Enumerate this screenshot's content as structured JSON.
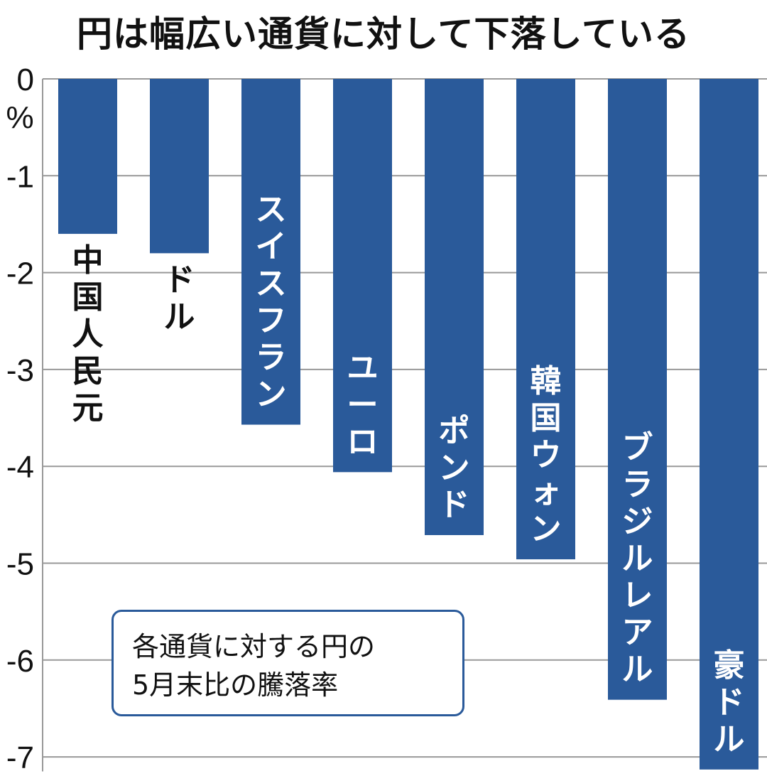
{
  "chart_data": {
    "type": "bar",
    "title": "円は幅広い通貨に対して下落している",
    "unit_label": "%",
    "categories": [
      "中国人民元",
      "ドル",
      "スイスフラン",
      "ユーロ",
      "ポンド",
      "韓国ウォン",
      "ブラジルレアル",
      "豪ドル"
    ],
    "values": [
      -1.6,
      -1.8,
      -3.57,
      -4.06,
      -4.71,
      -4.96,
      -6.41,
      -7.13
    ],
    "yticks": [
      "0",
      "-1",
      "-2",
      "-3",
      "-4",
      "-5",
      "-6",
      "-7"
    ],
    "ylim": [
      -7.15,
      0
    ],
    "grid": true,
    "legend_text": [
      "各通貨に対する円の",
      "5月末比の騰落率"
    ],
    "bar_color": "#2a5a9a",
    "grid_color": "#999999"
  }
}
